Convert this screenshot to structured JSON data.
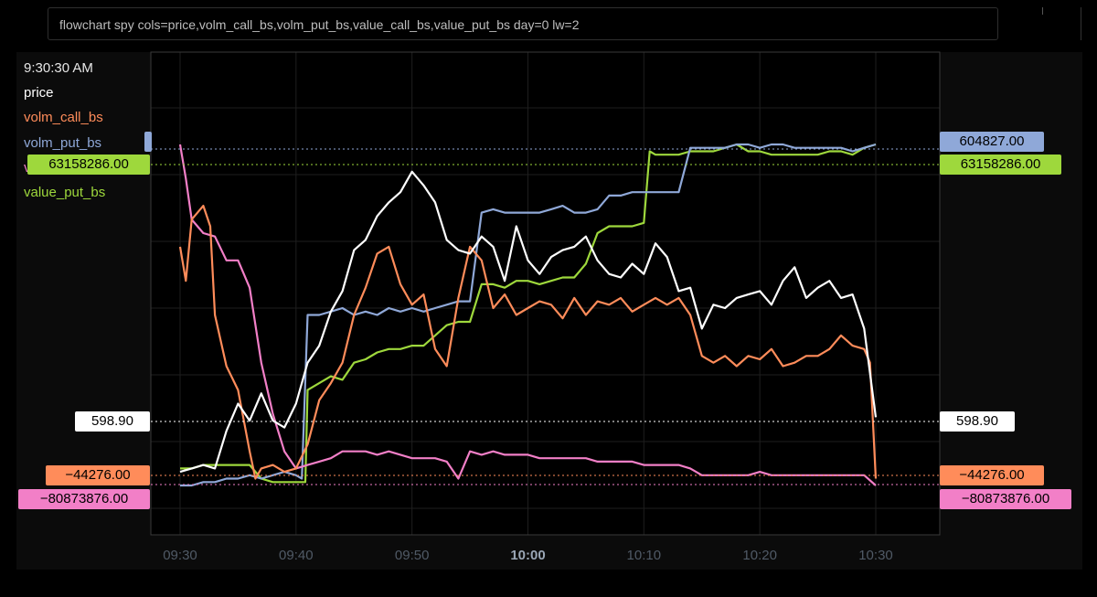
{
  "command": "flowchart spy cols=price,volm_call_bs,volm_put_bs,value_call_bs,value_put_bs day=0 lw=2",
  "time_readout": "9:30:30 AM",
  "legend": [
    {
      "name": "price",
      "color": "#ffffff"
    },
    {
      "name": "volm_call_bs",
      "color": "#ff8c5a"
    },
    {
      "name": "volm_put_bs",
      "color": "#8fa8d8"
    },
    {
      "name": "value_call_bs",
      "color": "#f27fc7"
    },
    {
      "name": "value_put_bs",
      "color": "#9ed83c"
    }
  ],
  "value_labels": [
    {
      "side": "left",
      "text": "63158286.00",
      "bg": "#9ed83c"
    },
    {
      "side": "left",
      "text": "598.90",
      "bg": "#ffffff"
    },
    {
      "side": "left",
      "text": "−44276.00",
      "bg": "#ff8c5a"
    },
    {
      "side": "left",
      "text": "−80873876.00",
      "bg": "#f27fc7"
    },
    {
      "side": "right",
      "text": "604827.00",
      "bg": "#8fa8d8"
    },
    {
      "side": "right",
      "text": "63158286.00",
      "bg": "#9ed83c"
    },
    {
      "side": "right",
      "text": "598.90",
      "bg": "#ffffff"
    },
    {
      "side": "right",
      "text": "−44276.00",
      "bg": "#ff8c5a"
    },
    {
      "side": "right",
      "text": "−80873876.00",
      "bg": "#f27fc7"
    }
  ],
  "chart_data": {
    "type": "line",
    "x_ticks": [
      "09:30",
      "09:40",
      "09:50",
      "10:00",
      "10:10",
      "10:20",
      "10:30"
    ],
    "bold_tick": "10:00",
    "grid": true,
    "x_unit": "minutes after 09:30",
    "y_note": "each series drawn on its own normalized scale (0 = bottom, 1 = top of plot)",
    "series": [
      {
        "name": "price",
        "color": "#ffffff",
        "x": [
          0,
          1,
          2,
          3,
          4,
          5,
          6,
          7,
          8,
          9,
          10,
          11,
          12,
          13,
          14,
          15,
          16,
          17,
          18,
          19,
          20,
          21,
          22,
          23,
          24,
          25,
          26,
          27,
          28,
          29,
          30,
          31,
          32,
          33,
          34,
          35,
          36,
          37,
          38,
          39,
          40,
          41,
          42,
          43,
          44,
          45,
          46,
          47,
          48,
          49,
          50,
          51,
          52,
          53,
          54,
          55,
          56,
          57,
          58,
          59,
          60
        ],
        "y": [
          0.04,
          0.05,
          0.06,
          0.05,
          0.16,
          0.24,
          0.19,
          0.27,
          0.19,
          0.17,
          0.24,
          0.36,
          0.41,
          0.51,
          0.57,
          0.69,
          0.72,
          0.79,
          0.83,
          0.86,
          0.92,
          0.88,
          0.83,
          0.72,
          0.69,
          0.68,
          0.73,
          0.7,
          0.6,
          0.76,
          0.66,
          0.62,
          0.67,
          0.69,
          0.7,
          0.73,
          0.66,
          0.62,
          0.61,
          0.65,
          0.62,
          0.71,
          0.67,
          0.57,
          0.58,
          0.46,
          0.53,
          0.52,
          0.55,
          0.56,
          0.57,
          0.53,
          0.6,
          0.64,
          0.55,
          0.58,
          0.6,
          0.55,
          0.56,
          0.46,
          0.2
        ]
      },
      {
        "name": "volm_call_bs",
        "color": "#ff8c5a",
        "x": [
          0,
          0.5,
          1,
          2,
          2.6,
          3,
          4,
          5,
          6,
          6.5,
          7,
          8,
          9,
          10,
          11,
          12,
          13,
          14,
          15,
          16,
          17,
          18,
          19,
          20,
          21,
          22,
          23,
          24,
          25,
          26,
          27,
          28,
          29,
          30,
          31,
          32,
          33,
          34,
          35,
          36,
          37,
          38,
          39,
          40,
          41,
          42,
          43,
          44,
          45,
          46,
          47,
          48,
          49,
          50,
          51,
          52,
          53,
          54,
          55,
          56,
          57,
          58,
          59,
          59.5,
          60
        ],
        "y": [
          0.7,
          0.6,
          0.78,
          0.82,
          0.76,
          0.5,
          0.35,
          0.28,
          0.1,
          0.02,
          0.05,
          0.06,
          0.04,
          0.05,
          0.12,
          0.25,
          0.3,
          0.36,
          0.5,
          0.58,
          0.68,
          0.7,
          0.59,
          0.53,
          0.56,
          0.4,
          0.35,
          0.55,
          0.7,
          0.66,
          0.52,
          0.56,
          0.5,
          0.52,
          0.54,
          0.53,
          0.49,
          0.55,
          0.5,
          0.54,
          0.53,
          0.55,
          0.51,
          0.53,
          0.55,
          0.53,
          0.55,
          0.5,
          0.38,
          0.36,
          0.38,
          0.35,
          0.38,
          0.37,
          0.4,
          0.35,
          0.36,
          0.38,
          0.38,
          0.4,
          0.44,
          0.41,
          0.4,
          0.36,
          0.02
        ]
      },
      {
        "name": "volm_put_bs",
        "color": "#8fa8d8",
        "x": [
          0,
          1,
          2,
          3,
          4,
          5,
          6,
          7,
          8,
          9,
          10,
          10.5,
          11,
          12,
          13,
          14,
          15,
          16,
          17,
          18,
          19,
          20,
          21,
          22,
          23,
          24,
          25,
          26,
          27,
          28,
          29,
          30,
          31,
          32,
          33,
          34,
          35,
          36,
          37,
          38,
          39,
          40,
          41,
          42,
          43,
          44,
          45,
          46,
          47,
          48,
          49,
          50,
          51,
          52,
          53,
          54,
          55,
          56,
          57,
          58,
          59,
          60
        ],
        "y": [
          0.0,
          0.0,
          0.01,
          0.01,
          0.02,
          0.02,
          0.03,
          0.02,
          0.03,
          0.04,
          0.03,
          0.02,
          0.5,
          0.5,
          0.51,
          0.52,
          0.5,
          0.51,
          0.5,
          0.52,
          0.51,
          0.52,
          0.51,
          0.52,
          0.53,
          0.54,
          0.54,
          0.8,
          0.81,
          0.8,
          0.8,
          0.8,
          0.8,
          0.81,
          0.82,
          0.8,
          0.8,
          0.81,
          0.85,
          0.85,
          0.86,
          0.86,
          0.86,
          0.86,
          0.86,
          0.99,
          0.99,
          0.99,
          0.99,
          1.0,
          1.0,
          0.99,
          1.0,
          1.0,
          0.99,
          0.99,
          0.99,
          0.99,
          0.99,
          0.98,
          0.99,
          1.0
        ]
      },
      {
        "name": "value_call_bs",
        "color": "#f27fc7",
        "x": [
          0,
          0.5,
          1,
          2,
          3,
          4,
          5,
          6,
          7,
          8,
          9,
          10,
          11,
          12,
          13,
          14,
          15,
          16,
          17,
          18,
          19,
          20,
          21,
          22,
          23,
          24,
          25,
          26,
          27,
          28,
          29,
          30,
          31,
          32,
          33,
          34,
          35,
          36,
          37,
          38,
          39,
          40,
          41,
          42,
          43,
          44,
          45,
          46,
          47,
          48,
          49,
          50,
          51,
          52,
          53,
          54,
          55,
          56,
          57,
          58,
          59,
          60
        ],
        "y": [
          1.0,
          0.9,
          0.78,
          0.74,
          0.73,
          0.66,
          0.66,
          0.58,
          0.36,
          0.21,
          0.1,
          0.05,
          0.06,
          0.07,
          0.08,
          0.1,
          0.1,
          0.1,
          0.09,
          0.1,
          0.09,
          0.08,
          0.08,
          0.08,
          0.07,
          0.02,
          0.1,
          0.09,
          0.1,
          0.09,
          0.09,
          0.09,
          0.08,
          0.08,
          0.08,
          0.08,
          0.08,
          0.07,
          0.07,
          0.07,
          0.07,
          0.06,
          0.06,
          0.06,
          0.06,
          0.05,
          0.03,
          0.03,
          0.03,
          0.03,
          0.03,
          0.04,
          0.03,
          0.03,
          0.03,
          0.03,
          0.03,
          0.03,
          0.03,
          0.03,
          0.03,
          0.0
        ]
      },
      {
        "name": "value_put_bs",
        "color": "#9ed83c",
        "x": [
          0,
          1,
          2,
          3,
          4,
          5,
          6,
          7,
          8,
          9,
          10,
          10.8,
          11,
          12,
          13,
          14,
          15,
          16,
          17,
          18,
          19,
          20,
          21,
          22,
          23,
          24,
          25,
          26,
          27,
          28,
          29,
          30,
          31,
          32,
          33,
          34,
          35,
          36,
          37,
          38,
          39,
          40,
          40.5,
          41,
          42,
          43,
          44,
          45,
          46,
          47,
          48,
          49,
          50,
          51,
          52,
          53,
          54,
          55,
          56,
          57,
          58,
          59,
          60
        ],
        "y": [
          0.05,
          0.05,
          0.06,
          0.06,
          0.06,
          0.06,
          0.06,
          0.02,
          0.01,
          0.01,
          0.01,
          0.01,
          0.28,
          0.3,
          0.32,
          0.31,
          0.36,
          0.37,
          0.39,
          0.4,
          0.4,
          0.41,
          0.41,
          0.44,
          0.47,
          0.48,
          0.48,
          0.59,
          0.59,
          0.58,
          0.6,
          0.6,
          0.59,
          0.6,
          0.61,
          0.61,
          0.65,
          0.74,
          0.76,
          0.76,
          0.76,
          0.77,
          0.98,
          0.97,
          0.97,
          0.97,
          0.98,
          0.98,
          0.98,
          0.99,
          1.0,
          0.98,
          0.98,
          0.97,
          0.97,
          0.97,
          0.97,
          0.97,
          0.98,
          0.98,
          0.97,
          0.99,
          1.0
        ]
      }
    ]
  }
}
